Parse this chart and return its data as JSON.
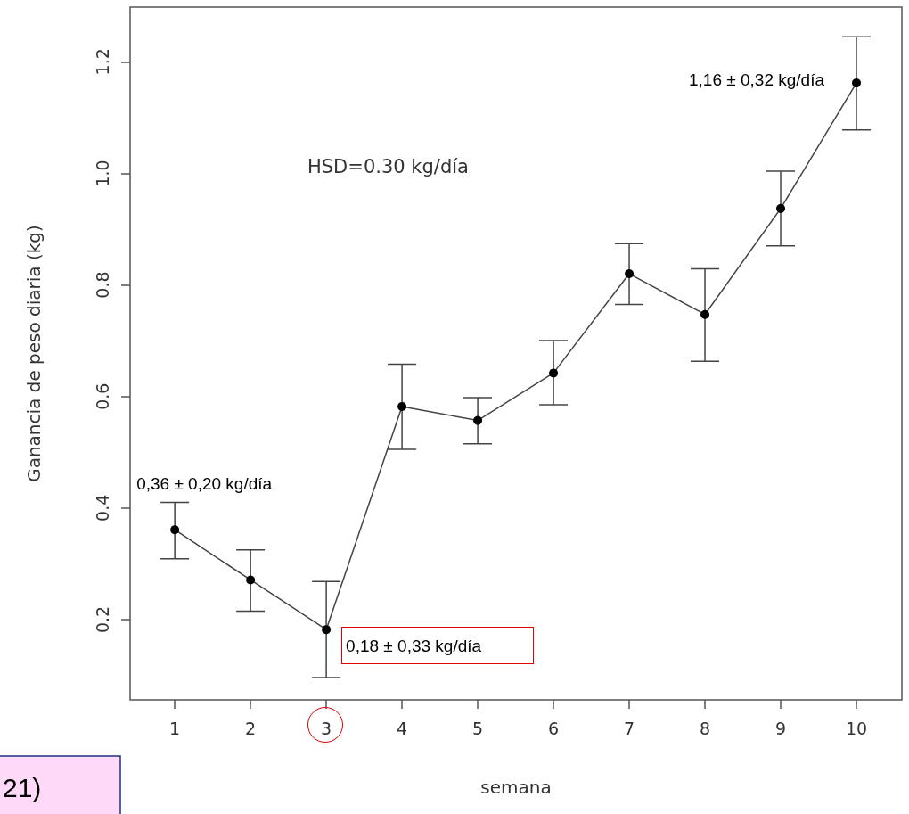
{
  "chart_data": {
    "type": "line",
    "xlabel": "semana",
    "ylabel": "Ganancia de peso diaria (kg)",
    "x": [
      1,
      2,
      3,
      4,
      5,
      6,
      7,
      8,
      9,
      10
    ],
    "series": [
      {
        "color": "#000000",
        "values": [
          0.361,
          0.271,
          0.182,
          0.582,
          0.557,
          0.642,
          0.82,
          0.747,
          0.937,
          1.162
        ],
        "errors": [
          [
            0.309,
            0.41
          ],
          [
            0.215,
            0.325
          ],
          [
            0.096,
            0.268
          ],
          [
            0.505,
            0.658
          ],
          [
            0.515,
            0.598
          ],
          [
            0.585,
            0.7
          ],
          [
            0.765,
            0.874
          ],
          [
            0.663,
            0.829
          ],
          [
            0.87,
            1.004
          ],
          [
            1.078,
            1.245
          ]
        ]
      }
    ],
    "xlim": [
      0.41,
      10.6
    ],
    "xticks": [
      1,
      2,
      3,
      4,
      5,
      6,
      7,
      8,
      9,
      10
    ],
    "ylim": [
      0.056,
      1.298
    ],
    "yticks": [
      0.2,
      0.4,
      0.6,
      0.8,
      {
        "value": 1,
        "label": "1.0"
      },
      1.2
    ],
    "marker": "circle",
    "line_style": "solid",
    "grid": false,
    "annotations": [
      "HSD=0.30 kg/día",
      {
        "text": "0,36 ± 0,20 kg/día",
        "x": 1,
        "y": 0.361
      },
      {
        "text": "0,18 ± 0,33 kg/día",
        "x": 3,
        "y": 0.182
      },
      {
        "text": "1,16 ± 0,32 kg/día",
        "x": 10,
        "y": 1.162
      },
      "21)"
    ]
  }
}
